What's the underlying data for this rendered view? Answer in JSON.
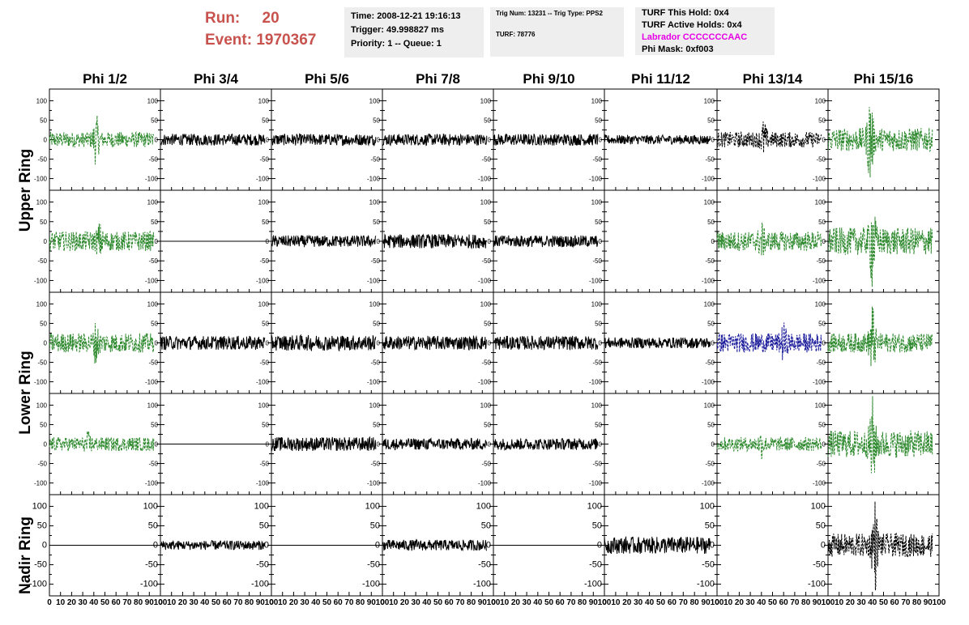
{
  "header": {
    "run_label": "Run:",
    "run_value": "20",
    "event_label": "Event:",
    "event_value": "1970367",
    "time": "Time: 2008-12-21 19:16:13",
    "trigger": "Trigger: 49.998827 ms",
    "priority": "Priority: 1 -- Queue: 1",
    "trig_info": "Trig Num: 13231 -- Trig Type: PPS2",
    "turf": "TURF: 78776",
    "turf_this_hold": "TURF This Hold: 0x4",
    "turf_active_holds": "TURF Active Holds: 0x4",
    "labrador": "Labrador CCCCCCCAAC",
    "phi_mask": "Phi Mask: 0xf003"
  },
  "columns": [
    "Phi 1/2",
    "Phi 3/4",
    "Phi 5/6",
    "Phi 7/8",
    "Phi 9/10",
    "Phi 11/12",
    "Phi 13/14",
    "Phi 15/16"
  ],
  "rows": [
    "Upper Ring",
    "Lower Ring",
    "Nadir Ring"
  ],
  "colors": {
    "green": "#2f8a2f",
    "black": "#000000",
    "blue": "#1c1c9c",
    "header_red": "#c8524d",
    "magenta": "#e600e6"
  },
  "chart_data": {
    "type": "line",
    "title": "",
    "xlim": [
      0,
      100
    ],
    "ylim": [
      -130,
      130
    ],
    "x_ticks": [
      0,
      10,
      20,
      30,
      40,
      50,
      60,
      70,
      80,
      90,
      100
    ],
    "y_ticks": [
      100,
      50,
      0,
      -50,
      -100
    ],
    "x_tick_labels": [
      "0",
      "10",
      "20",
      "30",
      "40",
      "50",
      "60",
      "70",
      "80",
      "90",
      "100"
    ],
    "y_tick_labels": [
      "100",
      "50",
      "0",
      "-50",
      "-100"
    ],
    "panel_rows": 5,
    "panel_cols": 8,
    "panels": [
      [
        {
          "color": "green",
          "style": "dashed",
          "amplitude": 20,
          "peak_x": 42,
          "peak_amp": 70
        },
        {
          "color": "black",
          "style": "solid",
          "amplitude": 15
        },
        {
          "color": "black",
          "style": "solid",
          "amplitude": 15
        },
        {
          "color": "black",
          "style": "solid",
          "amplitude": 15
        },
        {
          "color": "black",
          "style": "solid",
          "amplitude": 15
        },
        {
          "color": "black",
          "style": "solid",
          "amplitude": 12
        },
        {
          "color": "black",
          "style": "dashed",
          "amplitude": 20,
          "peak_x": 42,
          "peak_amp": 55
        },
        {
          "color": "green",
          "style": "dashed",
          "amplitude": 30,
          "peak_x": 38,
          "peak_amp": 130
        }
      ],
      [
        {
          "color": "green",
          "style": "dashed",
          "amplitude": 25,
          "peak_x": 45,
          "peak_amp": 50
        },
        {
          "color": "black",
          "style": "solid",
          "amplitude": 0
        },
        {
          "color": "black",
          "style": "solid",
          "amplitude": 15
        },
        {
          "color": "black",
          "style": "solid",
          "amplitude": 18
        },
        {
          "color": "black",
          "style": "solid",
          "amplitude": 15
        },
        {
          "color": "none",
          "style": "none",
          "amplitude": 0
        },
        {
          "color": "green",
          "style": "dashed",
          "amplitude": 25,
          "peak_x": 40,
          "peak_amp": 55
        },
        {
          "color": "green",
          "style": "dashed",
          "amplitude": 35,
          "peak_x": 40,
          "peak_amp": 130
        }
      ],
      [
        {
          "color": "green",
          "style": "dashed",
          "amplitude": 25,
          "peak_x": 42,
          "peak_amp": 60
        },
        {
          "color": "black",
          "style": "solid",
          "amplitude": 18
        },
        {
          "color": "black",
          "style": "solid",
          "amplitude": 20
        },
        {
          "color": "black",
          "style": "solid",
          "amplitude": 18
        },
        {
          "color": "black",
          "style": "solid",
          "amplitude": 18
        },
        {
          "color": "black",
          "style": "solid",
          "amplitude": 14
        },
        {
          "color": "blue",
          "style": "dashed",
          "amplitude": 25,
          "peak_x": 60,
          "peak_amp": 55
        },
        {
          "color": "green",
          "style": "dashed",
          "amplitude": 25,
          "peak_x": 40,
          "peak_amp": 110
        }
      ],
      [
        {
          "color": "green",
          "style": "dashed",
          "amplitude": 18,
          "peak_x": 35,
          "peak_amp": 35
        },
        {
          "color": "black",
          "style": "solid",
          "amplitude": 0
        },
        {
          "color": "black",
          "style": "solid",
          "amplitude": 18
        },
        {
          "color": "black",
          "style": "solid",
          "amplitude": 15
        },
        {
          "color": "black",
          "style": "solid",
          "amplitude": 15
        },
        {
          "color": "none",
          "style": "none",
          "amplitude": 0
        },
        {
          "color": "green",
          "style": "dashed",
          "amplitude": 18,
          "peak_x": 40,
          "peak_amp": 40
        },
        {
          "color": "green",
          "style": "dashed",
          "amplitude": 35,
          "peak_x": 40,
          "peak_amp": 130
        }
      ],
      [
        {
          "color": "black",
          "style": "solid",
          "amplitude": 0
        },
        {
          "color": "black",
          "style": "solid",
          "amplitude": 12
        },
        {
          "color": "black",
          "style": "solid",
          "amplitude": 0
        },
        {
          "color": "black",
          "style": "solid",
          "amplitude": 14
        },
        {
          "color": "black",
          "style": "solid",
          "amplitude": 0
        },
        {
          "color": "black",
          "style": "solid",
          "amplitude": 22
        },
        {
          "color": "none",
          "style": "none",
          "amplitude": 0
        },
        {
          "color": "black",
          "style": "dashed",
          "amplitude": 30,
          "peak_x": 42,
          "peak_amp": 130
        }
      ]
    ]
  }
}
